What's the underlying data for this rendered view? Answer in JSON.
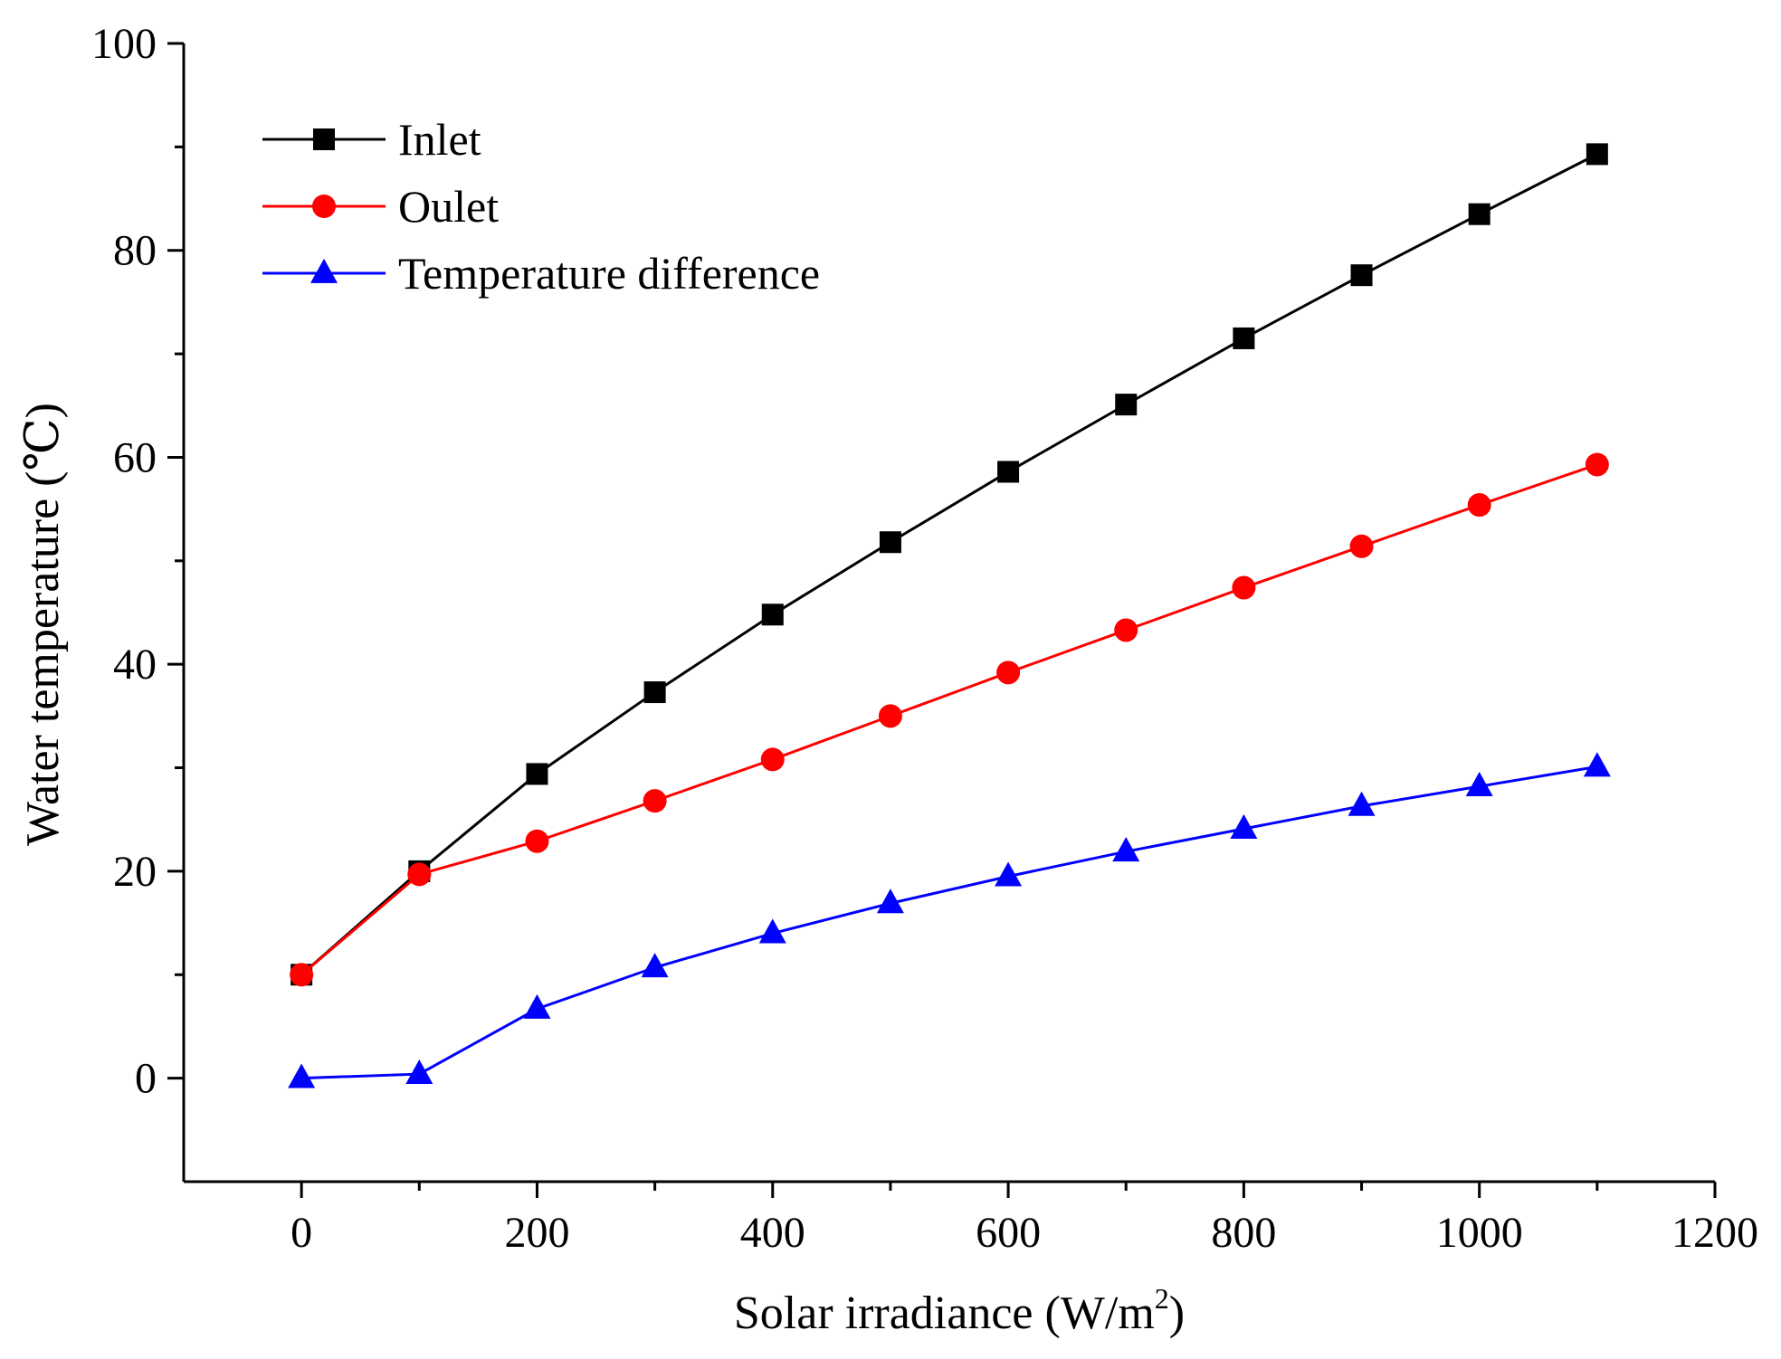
{
  "chart_data": {
    "type": "line",
    "xlabel": "Solar irradiance (W/m",
    "xlabel_sup": "2",
    "xlabel_end": ")",
    "ylabel": "Water temperature  (℃)",
    "xlim": [
      -100,
      1200
    ],
    "ylim": [
      -10,
      100
    ],
    "x_ticks": [
      0,
      200,
      400,
      600,
      800,
      1000,
      1200
    ],
    "x_minor_ticks": [
      100,
      300,
      500,
      700,
      900,
      1100
    ],
    "y_ticks": [
      0,
      20,
      40,
      60,
      80,
      100
    ],
    "y_minor_ticks": [
      10,
      30,
      50,
      70,
      90
    ],
    "legend_position": "top-left",
    "x": [
      0,
      100,
      200,
      300,
      400,
      500,
      600,
      700,
      800,
      900,
      1000,
      1100
    ],
    "series": [
      {
        "name": "Inlet",
        "color": "#000000",
        "marker": "square",
        "values": [
          10,
          20,
          29.4,
          37.3,
          44.8,
          51.8,
          58.6,
          65.1,
          71.5,
          77.6,
          83.5,
          89.3
        ]
      },
      {
        "name": "Oulet",
        "color": "#ff0000",
        "marker": "circle",
        "values": [
          10,
          19.7,
          22.9,
          26.8,
          30.8,
          35.0,
          39.2,
          43.3,
          47.4,
          51.4,
          55.4,
          59.3
        ]
      },
      {
        "name": "Temperature difference",
        "color": "#0000ff",
        "marker": "triangle",
        "values": [
          0,
          0.4,
          6.7,
          10.7,
          14.0,
          16.9,
          19.5,
          21.9,
          24.1,
          26.3,
          28.2,
          30.1
        ]
      }
    ]
  }
}
